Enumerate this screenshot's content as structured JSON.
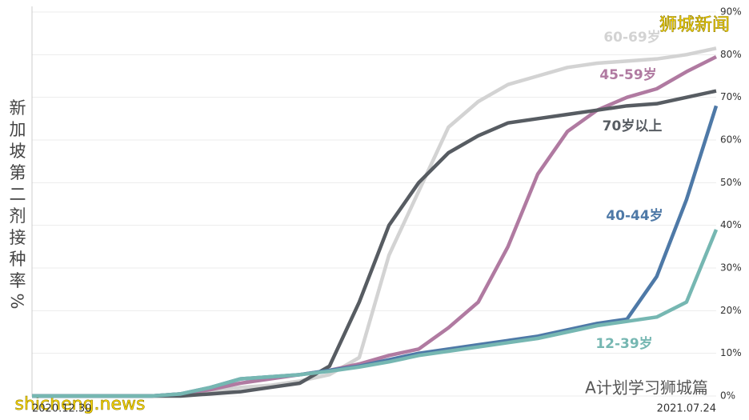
{
  "chart_data": {
    "type": "line",
    "y_label": "新加坡第二剂接种率%",
    "annotations": [
      "狮城新闻",
      "shicheng.news",
      "A计划学习狮城篇"
    ],
    "categories": [
      "2020.12.30",
      null,
      null,
      null,
      null,
      null,
      null,
      null,
      null,
      null,
      null,
      null,
      null,
      null,
      null,
      null,
      null,
      null,
      null,
      null,
      null,
      null,
      null,
      "2021.07.24"
    ],
    "series": [
      {
        "name": "60-69岁",
        "color": "#d3d3d3",
        "values": [
          0,
          0,
          0,
          0,
          0,
          0.3,
          1,
          2,
          2.5,
          3.5,
          5,
          9,
          33,
          48,
          63,
          69,
          73,
          75,
          77,
          78,
          78.5,
          79,
          80,
          81.5
        ]
      },
      {
        "name": "45-59岁",
        "color": "#b07aa1",
        "values": [
          0,
          0,
          0,
          0,
          0,
          0.5,
          1.5,
          3,
          4,
          5,
          6,
          7.5,
          9.5,
          11,
          16,
          22,
          35,
          52,
          62,
          67,
          70,
          72,
          76,
          79.5
        ]
      },
      {
        "name": "70岁以上",
        "color": "#575c62",
        "values": [
          0,
          0,
          0,
          0,
          0,
          0,
          0.5,
          1,
          2,
          3,
          7,
          22,
          40,
          50,
          57,
          61,
          64,
          65,
          66,
          67,
          68,
          68.5,
          70,
          71.5
        ]
      },
      {
        "name": "40-44岁",
        "color": "#4e79a7",
        "values": [
          0,
          0,
          0,
          0,
          0,
          0.5,
          2,
          4,
          4.5,
          5,
          6,
          7,
          8.5,
          10,
          11,
          12,
          13,
          14,
          15.5,
          17,
          18,
          28,
          46,
          68
        ]
      },
      {
        "name": "12-39岁",
        "color": "#76b7b2",
        "values": [
          0,
          0,
          0,
          0,
          0,
          0.5,
          2,
          4,
          4.5,
          5,
          5.8,
          6.8,
          8,
          9.5,
          10.5,
          11.5,
          12.5,
          13.5,
          15,
          16.5,
          17.5,
          18.5,
          22,
          39
        ]
      }
    ],
    "ylim": [
      0,
      90
    ],
    "yticks": [
      {
        "value": 0,
        "label": "0%"
      },
      {
        "value": 10,
        "label": "10%"
      },
      {
        "value": 20,
        "label": "20%"
      },
      {
        "value": 30,
        "label": "30%"
      },
      {
        "value": 40,
        "label": "40%"
      },
      {
        "value": 50,
        "label": "50%"
      },
      {
        "value": 60,
        "label": "60%"
      },
      {
        "value": 70,
        "label": "70%"
      },
      {
        "value": 80,
        "label": "80%"
      },
      {
        "value": 90,
        "label": "90%"
      }
    ],
    "grid": true
  }
}
